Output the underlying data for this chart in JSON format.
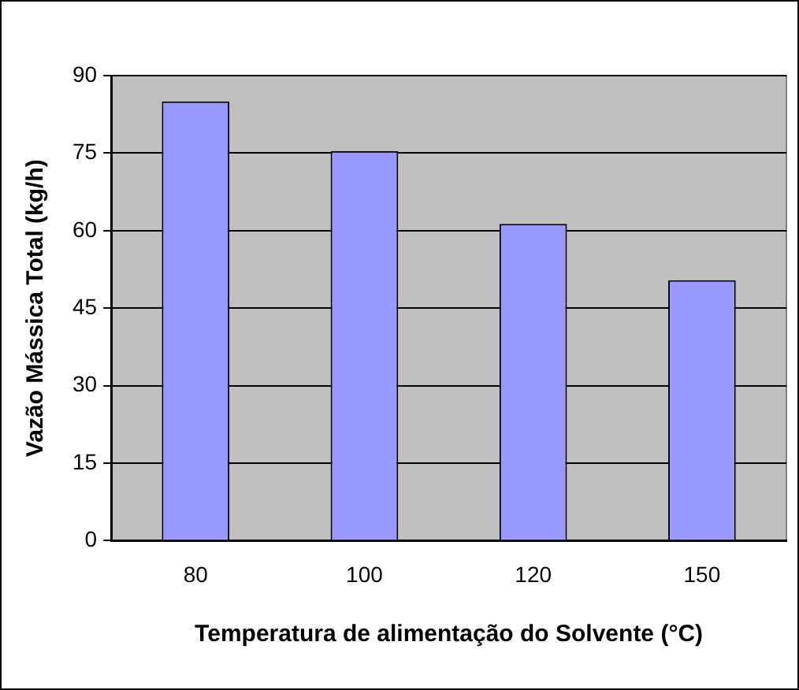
{
  "chart_data": {
    "type": "bar",
    "categories": [
      "80",
      "100",
      "120",
      "150"
    ],
    "values": [
      85,
      75.4,
      61.3,
      50.4
    ],
    "color": "#9999ff",
    "xlabel": "Temperatura de alimentação do Solvente (°C)",
    "ylabel": "Vazão Mássica Total (kg/h)",
    "ylim": [
      0,
      90
    ],
    "yticks": [
      0,
      15,
      30,
      45,
      60,
      75,
      90
    ],
    "grid": "y",
    "legend": false
  }
}
